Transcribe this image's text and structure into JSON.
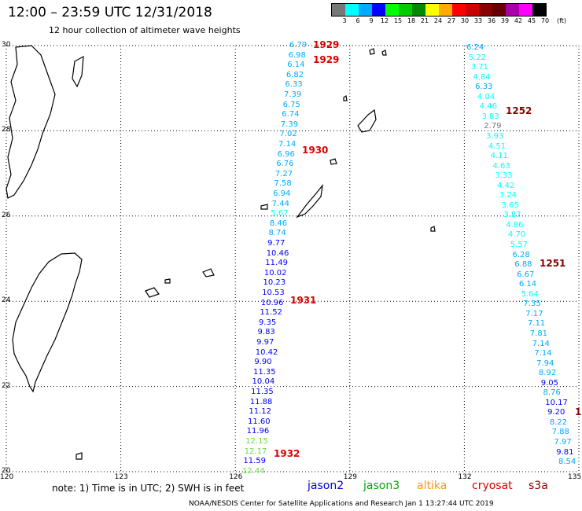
{
  "title": "12:00 – 23:59 UTC 12/31/2018",
  "subtitle": "12 hour collection of altimeter wave heights",
  "legend": {
    "colors": [
      "#777777",
      "#00ffff",
      "#00aaff",
      "#0000ff",
      "#00ff00",
      "#00cc00",
      "#008800",
      "#ffff00",
      "#ffaa00",
      "#ff0000",
      "#cc0000",
      "#880000",
      "#660000",
      "#aa00aa",
      "#ff00ff",
      "#000000"
    ],
    "labels": [
      "3",
      "6",
      "9",
      "12",
      "15",
      "18",
      "21",
      "24",
      "27",
      "30",
      "33",
      "36",
      "39",
      "42",
      "45",
      "70",
      "(ft)"
    ]
  },
  "axes": {
    "lat_labels": [
      "30",
      "28",
      "26",
      "24",
      "22",
      "20"
    ],
    "lon_labels": [
      "120",
      "123",
      "126",
      "129",
      "132",
      "135"
    ]
  },
  "tracks": {
    "left": [
      "6.79",
      "6.98",
      "6.14",
      "6.82",
      "6.33",
      "7.39",
      "6.75",
      "6.74",
      "7.39",
      "7.02",
      "7.14",
      "6.96",
      "6.76",
      "7.27",
      "7.58",
      "6.94",
      "7.44",
      "5.67",
      "8.46",
      "8.74",
      "9.77",
      "10.46",
      "11.49",
      "10.02",
      "10.23",
      "10.53",
      "10.96",
      "11.52",
      "9.35",
      "9.83",
      "9.97",
      "10.42",
      "9.90",
      "11.35",
      "10.04",
      "11.35",
      "11.88",
      "11.12",
      "11.60",
      "11.96",
      "12.15",
      "12.17",
      "11.59",
      "12.44"
    ],
    "right": [
      "6.24",
      "5.22",
      "3.71",
      "4.84",
      "6.33",
      "4.04",
      "4.46",
      "3.83",
      "2.79",
      "3.93",
      "4.51",
      "4.11",
      "4.63",
      "3.33",
      "4.42",
      "3.24",
      "3.65",
      "3.87",
      "4.86",
      "4.70",
      "5.57",
      "6.28",
      "6.88",
      "6.67",
      "6.14",
      "5.64",
      "7.35",
      "7.17",
      "7.11",
      "7.81",
      "7.14",
      "7.14",
      "7.94",
      "8.92",
      "9.05",
      "8.76",
      "10.17",
      "9.20",
      "8.22",
      "7.88",
      "7.97",
      "9.81",
      "8.54"
    ]
  },
  "pass_labels": [
    {
      "text": "1929",
      "color": "#dd0000"
    },
    {
      "text": "1929",
      "color": "#dd0000"
    },
    {
      "text": "1930",
      "color": "#dd0000"
    },
    {
      "text": "1931",
      "color": "#dd0000"
    },
    {
      "text": "1932",
      "color": "#dd0000"
    },
    {
      "text": "1252",
      "color": "#880000"
    },
    {
      "text": "1251",
      "color": "#880000"
    },
    {
      "text": "1",
      "color": "#880000"
    }
  ],
  "note": "note:  1) Time is in UTC; 2) SWH is in feet",
  "satellites": [
    {
      "name": "jason2",
      "color": "#0000dd"
    },
    {
      "name": "jason3",
      "color": "#00aa00"
    },
    {
      "name": "altika",
      "color": "#ff9900"
    },
    {
      "name": "cryosat",
      "color": "#dd0000"
    },
    {
      "name": "s3a",
      "color": "#880000"
    }
  ],
  "footer": "NOAA/NESDIS Center for Satellite Applications and Research    Jan  1 13:27:44 UTC 2019"
}
